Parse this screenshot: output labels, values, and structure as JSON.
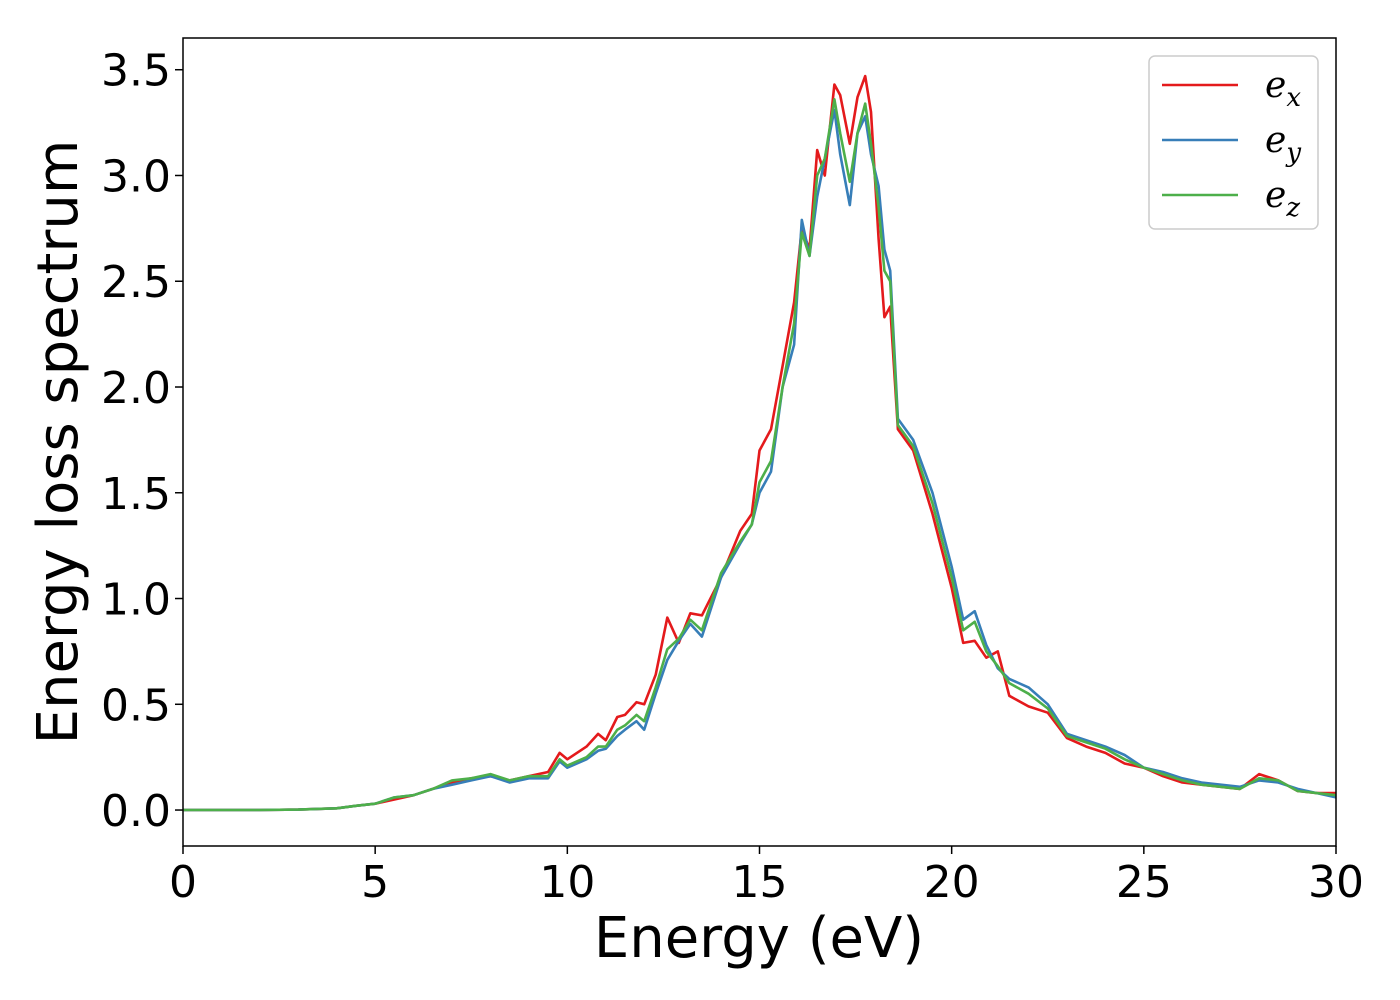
{
  "chart_data": {
    "type": "line",
    "xlabel": "Energy (eV)",
    "ylabel": "Energy loss spectrum",
    "xlim": [
      0,
      30
    ],
    "ylim": [
      -0.17,
      3.65
    ],
    "xticks": [
      "0",
      "5",
      "10",
      "15",
      "20",
      "25",
      "30"
    ],
    "yticks": [
      "0.0",
      "0.5",
      "1.0",
      "1.5",
      "2.0",
      "2.5",
      "3.0",
      "3.5"
    ],
    "xtick_values": [
      0,
      5,
      10,
      15,
      20,
      25,
      30
    ],
    "ytick_values": [
      0.0,
      0.5,
      1.0,
      1.5,
      2.0,
      2.5,
      3.0,
      3.5
    ],
    "grid": false,
    "legend_position": "top-right",
    "series": [
      {
        "name": "e",
        "subscript": "x",
        "color": "#e41a1c",
        "x": [
          0,
          2,
          3,
          4,
          4.5,
          5,
          5.5,
          6,
          6.5,
          7,
          7.5,
          8,
          8.5,
          9,
          9.5,
          9.8,
          10,
          10.5,
          10.8,
          11,
          11.3,
          11.5,
          11.8,
          12,
          12.3,
          12.6,
          12.9,
          13.2,
          13.5,
          14,
          14.5,
          14.8,
          15,
          15.3,
          15.6,
          15.9,
          16.1,
          16.3,
          16.5,
          16.7,
          16.95,
          17.1,
          17.35,
          17.55,
          17.75,
          17.9,
          18.1,
          18.25,
          18.4,
          18.6,
          19,
          19.5,
          20,
          20.3,
          20.6,
          20.9,
          21.2,
          21.5,
          22,
          22.5,
          23,
          23.5,
          24,
          24.5,
          25,
          25.5,
          26,
          26.5,
          27,
          27.5,
          28,
          28.5,
          29,
          29.5,
          30
        ],
        "y": [
          0,
          0,
          0.002,
          0.008,
          0.02,
          0.03,
          0.05,
          0.07,
          0.1,
          0.13,
          0.15,
          0.16,
          0.14,
          0.16,
          0.18,
          0.27,
          0.24,
          0.3,
          0.36,
          0.33,
          0.44,
          0.45,
          0.51,
          0.5,
          0.64,
          0.91,
          0.79,
          0.93,
          0.92,
          1.1,
          1.32,
          1.4,
          1.7,
          1.8,
          2.1,
          2.4,
          2.75,
          2.65,
          3.12,
          3.0,
          3.43,
          3.38,
          3.15,
          3.37,
          3.47,
          3.3,
          2.7,
          2.33,
          2.38,
          1.8,
          1.7,
          1.4,
          1.05,
          0.79,
          0.8,
          0.72,
          0.75,
          0.54,
          0.49,
          0.46,
          0.34,
          0.3,
          0.27,
          0.22,
          0.2,
          0.16,
          0.13,
          0.12,
          0.11,
          0.1,
          0.17,
          0.14,
          0.09,
          0.08,
          0.08
        ]
      },
      {
        "name": "e",
        "subscript": "y",
        "color": "#377eb8",
        "x": [
          0,
          2,
          3,
          4,
          4.5,
          5,
          5.5,
          6,
          6.5,
          7,
          7.5,
          8,
          8.5,
          9,
          9.5,
          9.8,
          10,
          10.5,
          10.8,
          11,
          11.3,
          11.5,
          11.8,
          12,
          12.3,
          12.6,
          12.9,
          13.2,
          13.5,
          14,
          14.5,
          14.8,
          15,
          15.3,
          15.6,
          15.9,
          16.1,
          16.3,
          16.5,
          16.7,
          16.95,
          17.1,
          17.35,
          17.55,
          17.75,
          17.9,
          18.1,
          18.25,
          18.4,
          18.6,
          19,
          19.5,
          20,
          20.3,
          20.6,
          20.9,
          21.2,
          21.5,
          22,
          22.5,
          23,
          23.5,
          24,
          24.5,
          25,
          25.5,
          26,
          26.5,
          27,
          27.5,
          28,
          28.5,
          29,
          29.5,
          30
        ],
        "y": [
          0,
          0,
          0.002,
          0.008,
          0.02,
          0.03,
          0.06,
          0.07,
          0.1,
          0.12,
          0.14,
          0.16,
          0.13,
          0.15,
          0.15,
          0.23,
          0.2,
          0.24,
          0.28,
          0.29,
          0.35,
          0.38,
          0.42,
          0.38,
          0.55,
          0.71,
          0.8,
          0.88,
          0.82,
          1.1,
          1.26,
          1.35,
          1.5,
          1.6,
          2.0,
          2.2,
          2.79,
          2.62,
          2.9,
          3.08,
          3.31,
          3.1,
          2.86,
          3.2,
          3.28,
          3.1,
          2.95,
          2.65,
          2.55,
          1.85,
          1.75,
          1.5,
          1.15,
          0.9,
          0.94,
          0.78,
          0.67,
          0.62,
          0.58,
          0.5,
          0.36,
          0.33,
          0.3,
          0.26,
          0.2,
          0.18,
          0.15,
          0.13,
          0.12,
          0.11,
          0.14,
          0.13,
          0.1,
          0.08,
          0.06
        ]
      },
      {
        "name": "e",
        "subscript": "z",
        "color": "#4daf4a",
        "x": [
          0,
          2,
          3,
          4,
          4.5,
          5,
          5.5,
          6,
          6.5,
          7,
          7.5,
          8,
          8.5,
          9,
          9.5,
          9.8,
          10,
          10.5,
          10.8,
          11,
          11.3,
          11.5,
          11.8,
          12,
          12.3,
          12.6,
          12.9,
          13.2,
          13.5,
          14,
          14.5,
          14.8,
          15,
          15.3,
          15.6,
          15.9,
          16.1,
          16.3,
          16.5,
          16.7,
          16.95,
          17.1,
          17.35,
          17.55,
          17.75,
          17.9,
          18.1,
          18.25,
          18.4,
          18.6,
          19,
          19.5,
          20,
          20.3,
          20.6,
          20.9,
          21.2,
          21.5,
          22,
          22.5,
          23,
          23.5,
          24,
          24.5,
          25,
          25.5,
          26,
          26.5,
          27,
          27.5,
          28,
          28.5,
          29,
          29.5,
          30
        ],
        "y": [
          0,
          0,
          0.002,
          0.008,
          0.02,
          0.03,
          0.06,
          0.07,
          0.1,
          0.14,
          0.15,
          0.17,
          0.14,
          0.16,
          0.16,
          0.24,
          0.21,
          0.25,
          0.3,
          0.3,
          0.38,
          0.4,
          0.45,
          0.42,
          0.58,
          0.76,
          0.81,
          0.9,
          0.85,
          1.12,
          1.27,
          1.35,
          1.55,
          1.65,
          2.0,
          2.3,
          2.73,
          2.62,
          3.0,
          3.08,
          3.36,
          3.2,
          2.97,
          3.2,
          3.34,
          3.15,
          2.85,
          2.55,
          2.5,
          1.82,
          1.72,
          1.45,
          1.1,
          0.85,
          0.89,
          0.75,
          0.68,
          0.6,
          0.55,
          0.48,
          0.35,
          0.32,
          0.29,
          0.24,
          0.2,
          0.17,
          0.14,
          0.12,
          0.11,
          0.1,
          0.15,
          0.14,
          0.09,
          0.08,
          0.07
        ]
      }
    ]
  }
}
